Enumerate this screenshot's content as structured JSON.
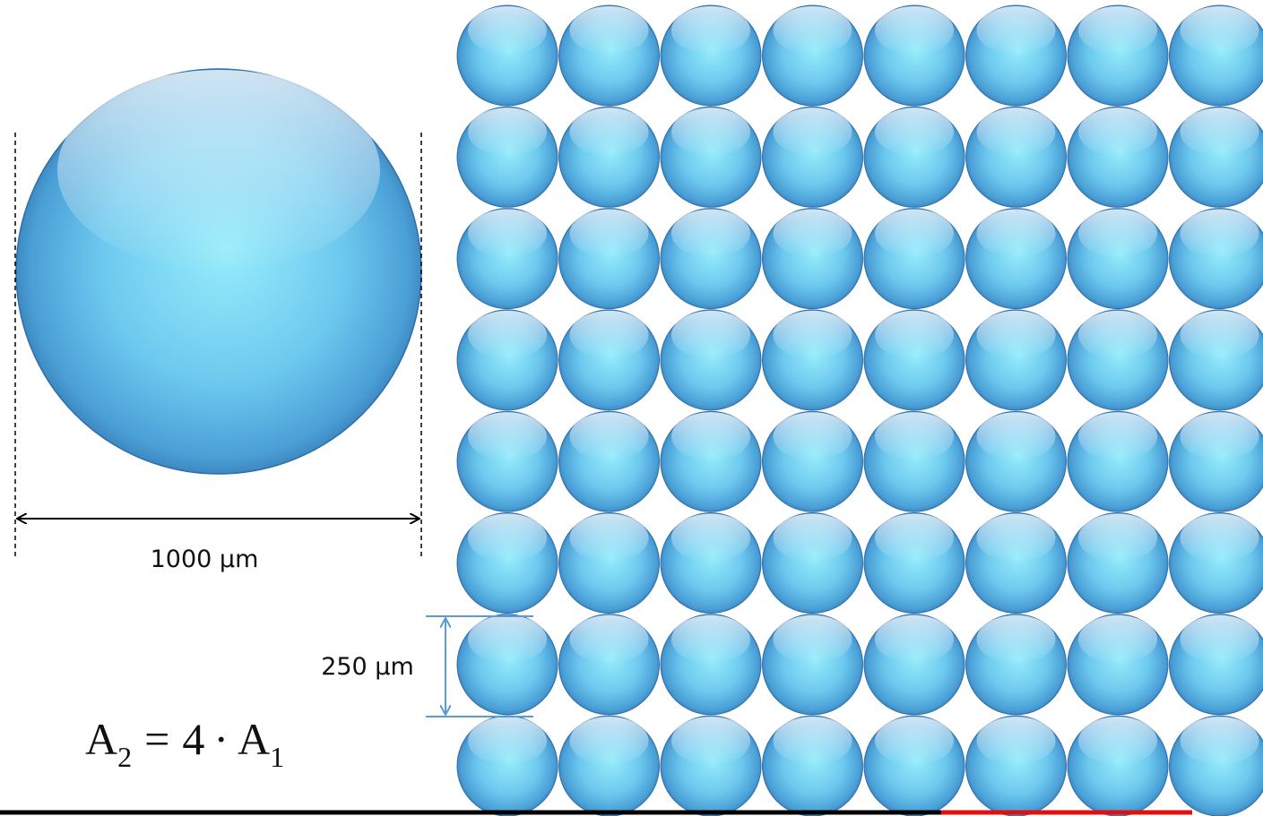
{
  "labels": {
    "large_diameter": "1000 µm",
    "small_diameter": "250 µm"
  },
  "equation": {
    "lhs": {
      "base": "A",
      "sub": "2"
    },
    "operator": "=",
    "rhs": {
      "coefficient": "4",
      "dot": "·",
      "base": "A",
      "sub": "1"
    }
  }
}
